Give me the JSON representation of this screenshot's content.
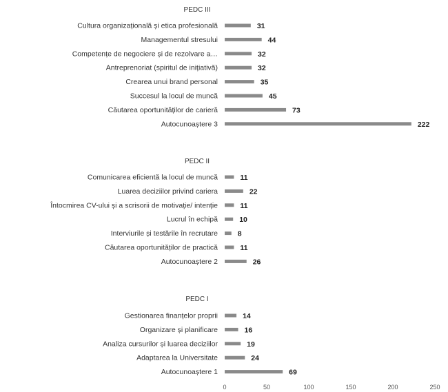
{
  "chart_data": {
    "type": "bar",
    "orientation": "horizontal",
    "xlim": [
      0,
      250
    ],
    "x_ticks": [
      0,
      50,
      100,
      150,
      200,
      250
    ],
    "grid": false,
    "colors": {
      "bar": "#8a8a8a",
      "text": "#333333"
    },
    "groups": [
      {
        "name": "PEDC III",
        "categories": [
          "Cultura organizațională și etica profesională",
          "Managementul stresului",
          "Competențe de negociere și de rezolvare a…",
          "Antreprenoriat (spiritul de inițiativă)",
          "Crearea unui brand personal",
          "Succesul la locul de muncă",
          "Căutarea oportunităților de carieră",
          "Autocunoaștere 3"
        ],
        "values": [
          31,
          44,
          32,
          32,
          35,
          45,
          73,
          222
        ]
      },
      {
        "name": "PEDC II",
        "categories": [
          "Comunicarea eficientă la locul de muncă",
          "Luarea deciziilor privind cariera",
          "Întocmirea CV-ului și a scrisorii de motivație/ intenție",
          "Lucrul în echipă",
          "Interviurile și testările în recrutare",
          "Căutarea oportunităților de practică",
          "Autocunoaștere 2"
        ],
        "values": [
          11,
          22,
          11,
          10,
          8,
          11,
          26
        ]
      },
      {
        "name": "PEDC I",
        "categories": [
          "Gestionarea finanțelor proprii",
          "Organizare și planificare",
          "Analiza cursurilor și luarea deciziilor",
          "Adaptarea la Universitate",
          "Autocunoaștere 1"
        ],
        "values": [
          14,
          16,
          19,
          24,
          69
        ]
      }
    ]
  }
}
